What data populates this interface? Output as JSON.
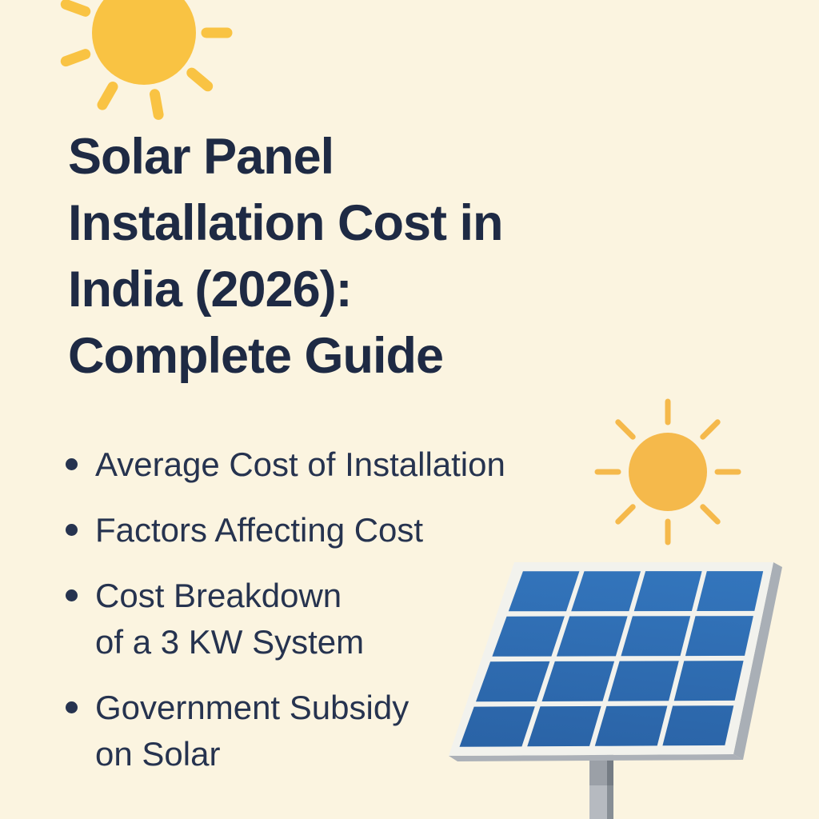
{
  "poster": {
    "title_lines": [
      "Solar Panel",
      "Installation Cost in",
      "India (2026):",
      "Complete Guide"
    ],
    "bullets": [
      {
        "text": "Average Cost of Installation"
      },
      {
        "text": "Factors Affecting Cost"
      },
      {
        "text": "Cost Breakdown\nof a 3 KW System"
      },
      {
        "text": "Government Subsidy\non Solar"
      }
    ]
  },
  "icons": {
    "sun_large": "sun-icon",
    "sun_small": "sun-icon",
    "solar_panel": "solar-panel-icon"
  },
  "colors": {
    "background": "#FBF4E0",
    "title_text": "#1E2A44",
    "bullet_text": "#26334F",
    "sun_large": "#F9C343",
    "sun_small": "#F5B94B",
    "panel_frame": "#F2F2ED",
    "panel_cell_top": "#3375BC",
    "panel_cell_bottom": "#2A63A6",
    "panel_edge": "#A9AFB6",
    "panel_underside": "#ACB1B8",
    "pole_light": "#B6BAC0",
    "pole_dark": "#878E95",
    "pole_shadow_light": "#9BA0A7",
    "pole_shadow_dark": "#757C84"
  }
}
